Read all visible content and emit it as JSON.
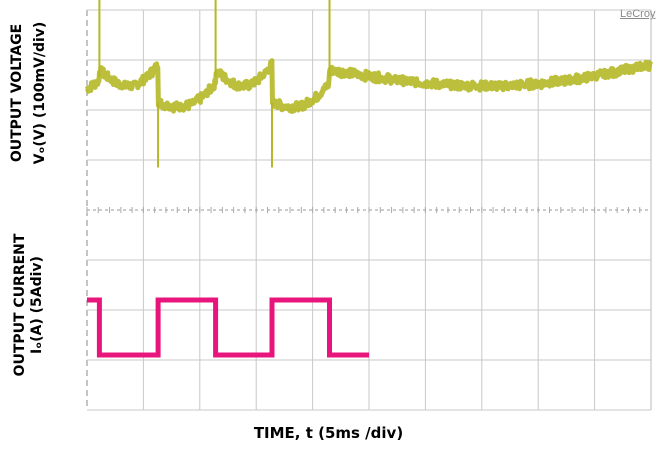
{
  "chart_data": {
    "type": "line",
    "xlabel": "TIME, t (5ms /div)",
    "brand": "LeCroy",
    "x_divisions": 10,
    "y_divisions": 8,
    "time_per_div_ms": 5,
    "channels": [
      {
        "name": "voltage",
        "ylabel_line1": "OUTPUT VOLTAGE",
        "ylabel_line2": "Vₒ(V) (100mV/div)",
        "color": "#b5b826",
        "volts_per_div": 0.1,
        "step_times_ms": [
          1.1,
          6.3,
          11.4,
          16.4,
          21.5
        ],
        "step_directions": [
          "up",
          "down",
          "up",
          "down",
          "up"
        ],
        "overshoot_div": 1.7,
        "undershoot_div": 1.0,
        "settle_offset_div": 0.1,
        "sawtooth_amplitude_div": 0.3
      },
      {
        "name": "current",
        "ylabel_line1": "OUTPUT CURRENT",
        "ylabel_line2": "Iₒ(A) (5Adiv)",
        "color": "#e8157d",
        "amps_per_div": 5,
        "high_level_div": 0.4,
        "low_level_div": -0.7,
        "segments_ms": [
          {
            "t0": 0.0,
            "t1": 1.1,
            "level": "high"
          },
          {
            "t0": 1.1,
            "t1": 6.3,
            "level": "low"
          },
          {
            "t0": 6.3,
            "t1": 11.4,
            "level": "high"
          },
          {
            "t0": 11.4,
            "t1": 16.4,
            "level": "low"
          },
          {
            "t0": 16.4,
            "t1": 21.5,
            "level": "high"
          },
          {
            "t0": 21.5,
            "t1": 25.0,
            "level": "low"
          }
        ]
      }
    ],
    "grid": true,
    "background": "#ffffff",
    "grid_color": "#c8c8c8"
  }
}
